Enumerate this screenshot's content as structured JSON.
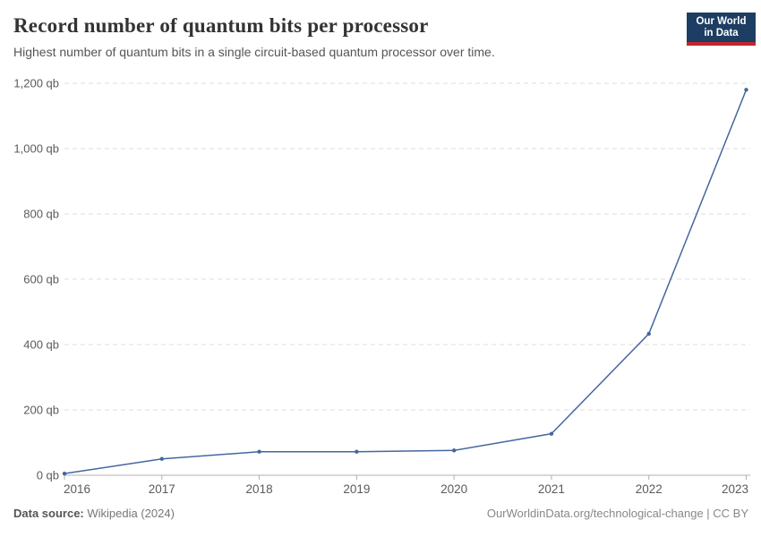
{
  "header": {
    "title": "Record number of quantum bits per processor",
    "subtitle": "Highest number of quantum bits in a single circuit-based quantum processor over time."
  },
  "logo": {
    "line1": "Our World",
    "line2": "in Data",
    "bg_color": "#1d3d63",
    "bar_color": "#c0272d"
  },
  "chart_data": {
    "type": "line",
    "title": "Record number of quantum bits per processor",
    "subtitle": "Highest number of quantum bits in a single circuit-based quantum processor over time.",
    "x": [
      2016,
      2017,
      2018,
      2019,
      2020,
      2021,
      2022,
      2023
    ],
    "x_labels": [
      "2016",
      "2017",
      "2018",
      "2019",
      "2020",
      "2021",
      "2022",
      "2023"
    ],
    "series": [
      {
        "name": "Record number of quantum bits",
        "values": [
          5,
          50,
          72,
          72,
          76,
          127,
          433,
          1180
        ],
        "color": "#45669f"
      }
    ],
    "xlabel": "",
    "ylabel": "",
    "ylim": [
      0,
      1200
    ],
    "yticks": [
      0,
      200,
      400,
      600,
      800,
      1000,
      1200
    ],
    "ytick_labels": [
      "0 qb",
      "200 qb",
      "400 qb",
      "600 qb",
      "800 qb",
      "1,000 qb",
      "1,200 qb"
    ],
    "grid": "horizontal-dashed",
    "legend": "none",
    "marker": "dot"
  },
  "footer": {
    "source_label": "Data source:",
    "source_value": "Wikipedia (2024)",
    "credit": "OurWorldinData.org/technological-change | CC BY"
  },
  "colors": {
    "line": "#45669f",
    "grid": "#dddddd",
    "axis": "#b0b0b0",
    "tick_label": "#5b5b5b",
    "title": "#333333",
    "subtitle": "#555555"
  }
}
